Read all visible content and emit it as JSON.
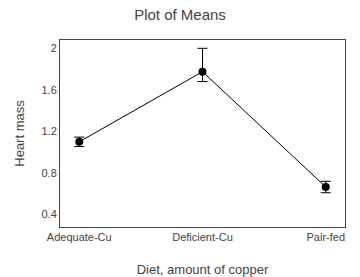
{
  "chart_data": {
    "type": "line",
    "title": "Plot of Means",
    "x_label": "Diet, amount of copper",
    "y_label": "Heart mass",
    "categories": [
      "Adequate-Cu",
      "Deficient-Cu",
      "Pair-fed"
    ],
    "values": [
      1.1,
      1.775,
      0.665
    ],
    "ci_lower": [
      0.045,
      0.095,
      0.055
    ],
    "ci_upper": [
      0.045,
      0.225,
      0.055
    ],
    "color": "#000000",
    "marker": "circle",
    "ylim": [
      0.28,
      2.08
    ],
    "yticks": [
      0.4,
      0.8,
      1.2,
      1.6,
      2.0
    ],
    "grid": false
  }
}
